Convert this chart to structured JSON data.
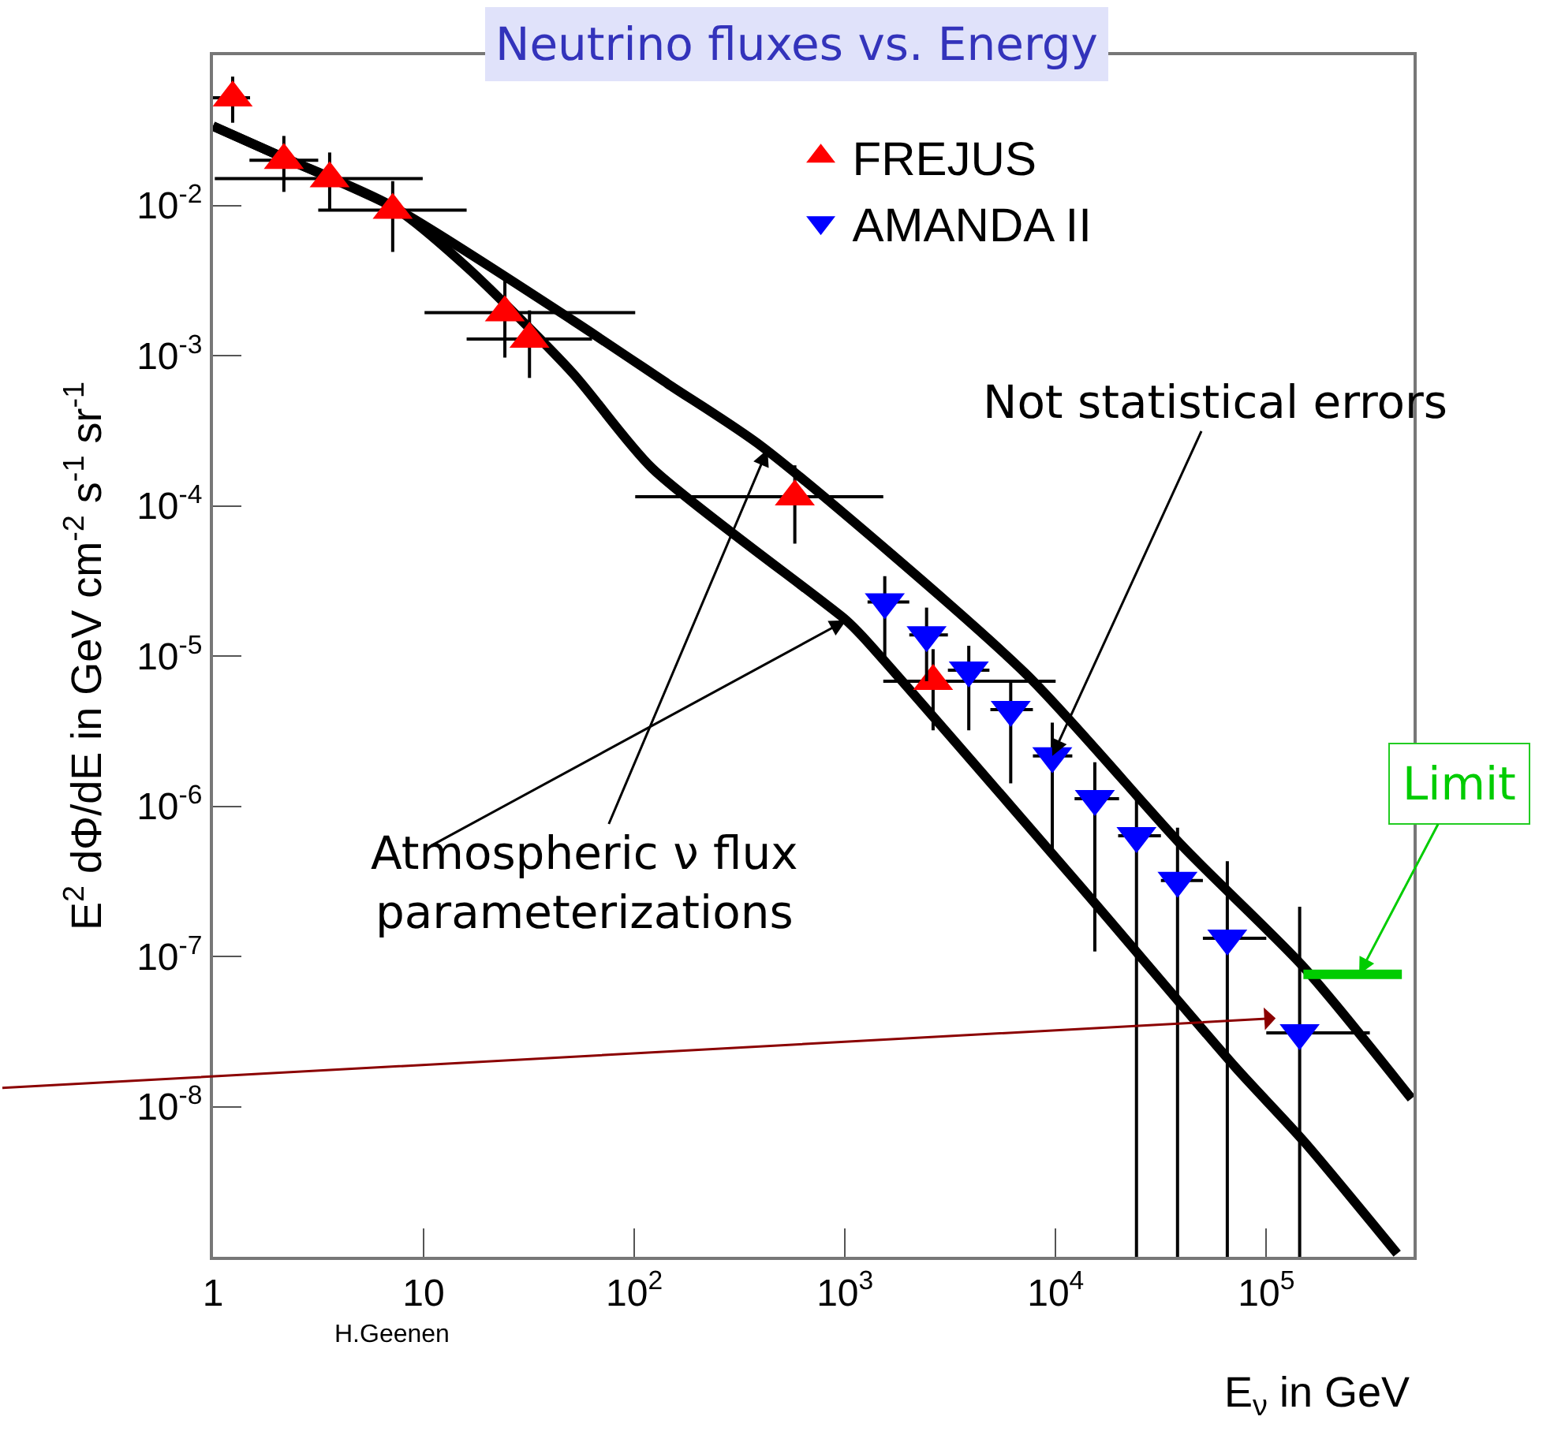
{
  "chart_data": {
    "type": "scatter",
    "title": "Neutrino fluxes vs. Energy",
    "xlabel": "E$_{ν}$ in GeV",
    "ylabel": "E$^{2}$ dΦ/dE in GeV cm$^{-2}$ s$^{-1}$ sr$^{-1}$",
    "log": "xy",
    "grid": false,
    "legend": "top right",
    "xlim": [
      1,
      500000
    ],
    "xticks": [
      1,
      10,
      {
        "value": 100,
        "label": "10$^{2}$"
      },
      {
        "value": 1000,
        "label": "10$^{3}$"
      },
      {
        "value": 10000,
        "label": "10$^{4}$"
      },
      {
        "value": 100000,
        "label": "10$^{5}$"
      }
    ],
    "ylim": [
      1e-09,
      0.1
    ],
    "yticks": [
      {
        "value": 0.01,
        "label": "10$^{-2}$"
      },
      {
        "value": 0.001,
        "label": "10$^{-3}$"
      },
      {
        "value": 0.0001,
        "label": "10$^{-4}$"
      },
      {
        "value": 1e-05,
        "label": "10$^{-5}$"
      },
      {
        "value": 1e-06,
        "label": "10$^{-6}$"
      },
      {
        "value": 1e-07,
        "label": "10$^{-7}$"
      },
      {
        "value": 1e-08,
        "label": "10$^{-8}$"
      }
    ],
    "series": [
      {
        "name": "FREJUS",
        "marker": "triangle",
        "color": "#ff0000",
        "x": [
          1.24,
          2.17,
          3.58,
          7.13,
          24.3,
          31.8,
          578,
          2620
        ],
        "values": [
          0.052,
          0.02,
          0.0151,
          0.0093,
          0.00193,
          0.00129,
          0.000115,
          6.8e-06
        ],
        "errors": [
          [
            0.0355,
            0.072
          ],
          [
            0.0123,
            0.029
          ],
          [
            0.0093,
            0.0225
          ],
          [
            0.0049,
            0.0145
          ],
          [
            0.00097,
            0.00325
          ],
          [
            0.00071,
            0.002
          ],
          [
            5.6e-05,
            0.000186
          ],
          [
            3.2e-06,
            1.11e-05
          ]
        ],
        "xerrors": [
          [
            1.0,
            1.5
          ],
          [
            1.49,
            3.16
          ],
          [
            1.02,
            9.9
          ],
          [
            3.16,
            16
          ],
          [
            10.1,
            101
          ],
          [
            16,
            63
          ],
          [
            101,
            1520
          ],
          [
            1520,
            10000
          ]
        ]
      },
      {
        "name": "AMANDA II",
        "marker": "triangle-down",
        "color": "#0000ff",
        "x": [
          1545,
          2440,
          3870,
          6120,
          9640,
          15350,
          24200,
          37900,
          65300,
          144000
        ],
        "values": [
          2.29e-05,
          1.38e-05,
          8.05e-06,
          4.4e-06,
          2.16e-06,
          1.12e-06,
          6.35e-07,
          3.2e-07,
          1.32e-07,
          3.1e-08
        ],
        "errors": [
          [
            8.7e-06,
            3.4e-05
          ],
          [
            6.8e-06,
            2.1e-05
          ],
          [
            3.2e-06,
            1.17e-05
          ],
          [
            1.42e-06,
            6.8e-06
          ],
          [
            4.6e-07,
            3.6e-06
          ],
          [
            1.08e-07,
            1.96e-06
          ],
          [
            1e-09,
            1.26e-06
          ],
          [
            1e-09,
            7.2e-07
          ],
          [
            1e-09,
            4.3e-07
          ],
          [
            1e-09,
            2.14e-07
          ]
        ],
        "xerrors": [
          [
            1280,
            2020
          ],
          [
            2020,
            3080
          ],
          [
            3080,
            4850
          ],
          [
            4900,
            7800
          ],
          [
            7800,
            12000
          ],
          [
            12300,
            20000
          ],
          [
            19800,
            31600
          ],
          [
            31600,
            50000
          ],
          [
            50000,
            100000
          ],
          [
            100000,
            310000
          ]
        ]
      },
      {
        "type": "line",
        "color": "#000000",
        "x": [
          1,
          2.17,
          7.26,
          51.2,
          144,
          405,
          7160,
          40100,
          150300,
          489000
        ],
        "values": [
          0.0337,
          0.0208,
          0.00966,
          0.00171,
          0.00065,
          0.000247,
          7.7e-06,
          5.4e-07,
          8.5e-08,
          1.13e-08
        ]
      },
      {
        "type": "line",
        "color": "#000000",
        "x": [
          1,
          2.17,
          7.26,
          16.2,
          51.2,
          121,
          1014,
          1205,
          12700,
          71300,
          150300,
          418000
        ],
        "values": [
          0.0337,
          0.0208,
          0.00966,
          0.00383,
          0.00076,
          0.000179,
          1.73e-05,
          1.36e-05,
          3.08e-07,
          1.83e-08,
          5.9e-09,
          1.05e-09
        ]
      },
      {
        "type": "line",
        "color": "#00cc00",
        "x": [
          150000,
          440000
        ],
        "values": [
          7.6e-08,
          7.6e-08
        ]
      }
    ],
    "annotations": [
      {
        "text": "Atmospheric ν flux\nparameterizations",
        "x": 429,
        "y": 0.000237
      },
      {
        "text": "Not statistical errors",
        "x": 9640,
        "y": 2.16e-06
      },
      {
        "text": "Limit",
        "x": 276000,
        "y": 7.6e-08
      },
      "H.Geenen"
    ]
  }
}
